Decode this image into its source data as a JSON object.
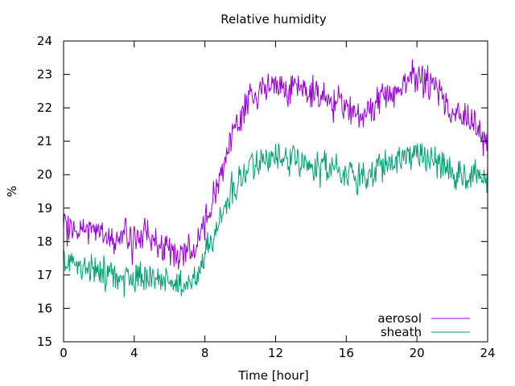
{
  "chart_data": {
    "type": "line",
    "title": "Relative humidity",
    "xlabel": "Time [hour]",
    "ylabel": "%",
    "xlim": [
      0,
      24
    ],
    "ylim": [
      15,
      24
    ],
    "xticks": [
      0,
      4,
      8,
      12,
      16,
      20,
      24
    ],
    "yticks": [
      15,
      16,
      17,
      18,
      19,
      20,
      21,
      22,
      23,
      24
    ],
    "grid": false,
    "legend": "bottom-right",
    "series": [
      {
        "name": "aerosol",
        "color": "#9400d3",
        "x": [
          0,
          0.5,
          1,
          1.5,
          2,
          2.5,
          3,
          3.5,
          4,
          4.5,
          5,
          5.5,
          6,
          6.5,
          7,
          7.5,
          8,
          8.5,
          9,
          9.5,
          10,
          10.5,
          11,
          11.5,
          12,
          12.5,
          13,
          13.5,
          14,
          14.5,
          15,
          15.5,
          16,
          16.5,
          17,
          17.5,
          18,
          18.5,
          19,
          19.5,
          20,
          20.5,
          21,
          21.5,
          22,
          22.5,
          23,
          23.5,
          24
        ],
        "y": [
          18.4,
          18.3,
          18.4,
          18.3,
          18.3,
          18.2,
          18.1,
          18.2,
          18.0,
          18.2,
          18.1,
          17.9,
          17.6,
          17.6,
          17.7,
          17.9,
          18.6,
          19.4,
          20.3,
          21.0,
          21.7,
          22.2,
          22.5,
          22.6,
          22.6,
          22.6,
          22.6,
          22.5,
          22.4,
          22.4,
          22.3,
          22.2,
          21.9,
          21.8,
          21.8,
          22.0,
          22.3,
          22.4,
          22.6,
          22.8,
          22.9,
          22.8,
          22.6,
          22.2,
          21.9,
          21.7,
          21.6,
          21.4,
          21.2
        ]
      },
      {
        "name": "sheath",
        "color": "#009e73",
        "x": [
          0,
          0.5,
          1,
          1.5,
          2,
          2.5,
          3,
          3.5,
          4,
          4.5,
          5,
          5.5,
          6,
          6.5,
          7,
          7.5,
          8,
          8.5,
          9,
          9.5,
          10,
          10.5,
          11,
          11.5,
          12,
          12.5,
          13,
          13.5,
          14,
          14.5,
          15,
          15.5,
          16,
          16.5,
          17,
          17.5,
          18,
          18.5,
          19,
          19.5,
          20,
          20.5,
          21,
          21.5,
          22,
          22.5,
          23,
          23.5,
          24
        ],
        "y": [
          17.4,
          17.3,
          17.3,
          17.2,
          17.2,
          17.1,
          17.0,
          17.0,
          16.9,
          16.9,
          16.9,
          16.8,
          16.7,
          16.7,
          16.8,
          17.0,
          17.6,
          18.2,
          18.8,
          19.4,
          19.9,
          20.2,
          20.4,
          20.5,
          20.5,
          20.4,
          20.4,
          20.3,
          20.3,
          20.3,
          20.3,
          20.2,
          20.0,
          19.9,
          19.9,
          20.0,
          20.2,
          20.3,
          20.5,
          20.6,
          20.7,
          20.6,
          20.4,
          20.3,
          20.1,
          20.0,
          20.0,
          20.0,
          20.0
        ]
      }
    ]
  }
}
